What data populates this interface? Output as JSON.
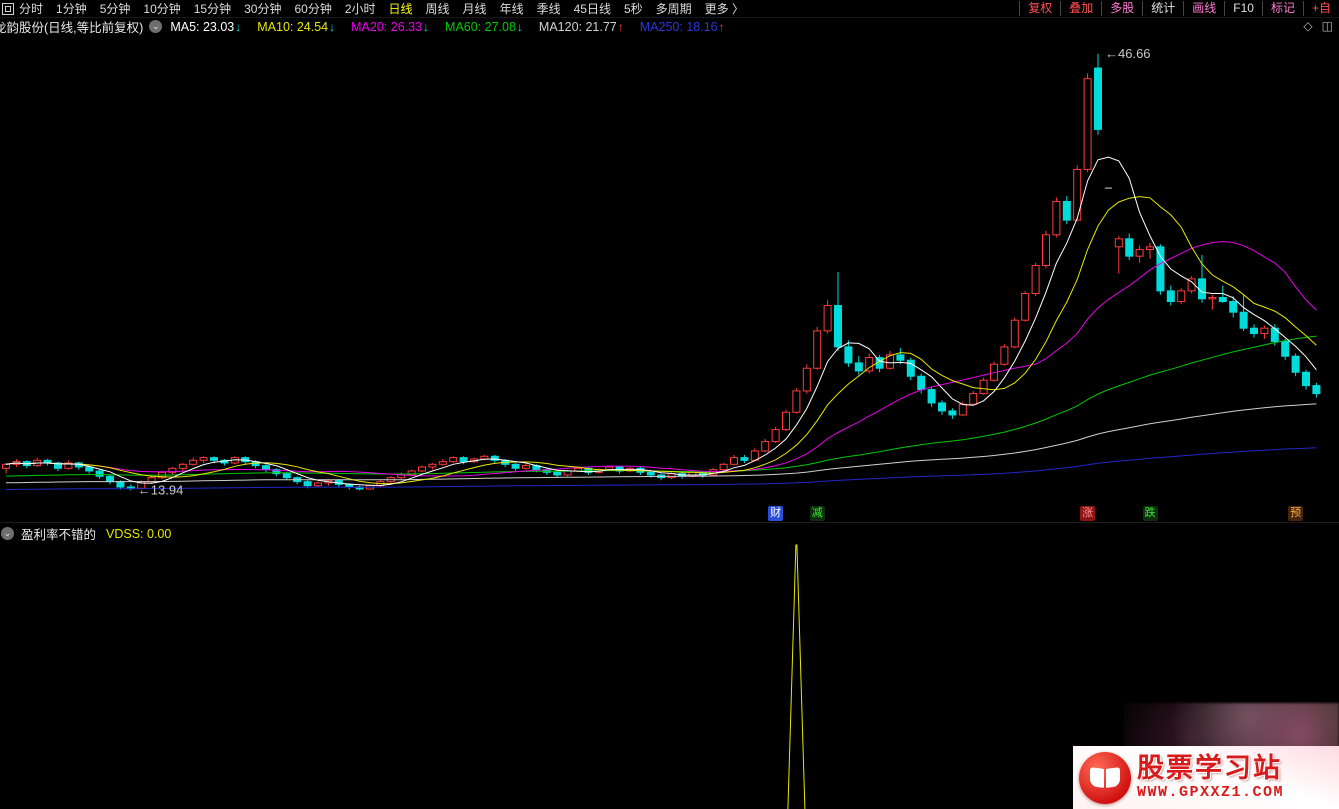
{
  "toolbar": {
    "periods": [
      {
        "label": "分时",
        "active": false
      },
      {
        "label": "1分钟",
        "active": false
      },
      {
        "label": "5分钟",
        "active": false
      },
      {
        "label": "10分钟",
        "active": false
      },
      {
        "label": "15分钟",
        "active": false
      },
      {
        "label": "30分钟",
        "active": false
      },
      {
        "label": "60分钟",
        "active": false
      },
      {
        "label": "2小时",
        "active": false
      },
      {
        "label": "日线",
        "active": true
      },
      {
        "label": "周线",
        "active": false
      },
      {
        "label": "月线",
        "active": false
      },
      {
        "label": "年线",
        "active": false
      },
      {
        "label": "季线",
        "active": false
      },
      {
        "label": "45日线",
        "active": false
      },
      {
        "label": "5秒",
        "active": false
      },
      {
        "label": "多周期",
        "active": false
      },
      {
        "label": "更多 〉",
        "active": false
      }
    ],
    "right_items": [
      {
        "label": "复权",
        "color": "#ff5050"
      },
      {
        "label": "叠加",
        "color": "#ff5050"
      },
      {
        "label": "多股",
        "color": "#ff7ad2"
      },
      {
        "label": "统计",
        "color": "#e0e0e0"
      },
      {
        "label": "画线",
        "color": "#ff7ad2"
      },
      {
        "label": "F10",
        "color": "#e0e0e0"
      },
      {
        "label": "标记",
        "color": "#ff7ad2"
      },
      {
        "label": "+自",
        "color": "#ff5050"
      }
    ]
  },
  "title_row": {
    "stock_title": "龙韵股份(日线,等比前复权)",
    "collapse_icon": "⌄",
    "ma_legend": [
      {
        "text": "MA5: 23.03",
        "color": "#ffffff",
        "arrow": "down"
      },
      {
        "text": "MA10: 24.54",
        "color": "#e8e800",
        "arrow": "down"
      },
      {
        "text": "MA20: 26.33",
        "color": "#e800e8",
        "arrow": "down"
      },
      {
        "text": "MA60: 27.08",
        "color": "#00c800",
        "arrow": "down"
      },
      {
        "text": "MA120: 21.77",
        "color": "#d0d0d0",
        "arrow": "up"
      },
      {
        "text": "MA250: 18.16",
        "color": "#2b36d8",
        "arrow": "up"
      }
    ],
    "window_icons": {
      "diamond": "◇",
      "split": "◫"
    }
  },
  "chart_data": {
    "type": "candlestick",
    "title": "龙韵股份 日线 等比前复权",
    "ylim": [
      13.0,
      48.0
    ],
    "bar_start_x": 6,
    "bar_spacing": 10.4,
    "body_width": 7,
    "colors": {
      "up": "#ff3a3a",
      "down": "#00dcdc",
      "flat": "#b0b0b0"
    },
    "candles": [
      [
        15.6,
        16.0,
        15.2,
        15.9
      ],
      [
        15.9,
        16.3,
        15.7,
        16.1
      ],
      [
        16.1,
        16.2,
        15.6,
        15.8
      ],
      [
        15.8,
        16.4,
        15.7,
        16.2
      ],
      [
        16.2,
        16.3,
        15.8,
        16.0
      ],
      [
        16.0,
        16.1,
        15.4,
        15.6
      ],
      [
        15.6,
        16.2,
        15.5,
        16.0
      ],
      [
        16.0,
        16.1,
        15.5,
        15.7
      ],
      [
        15.7,
        15.8,
        15.2,
        15.4
      ],
      [
        15.4,
        15.5,
        14.8,
        15.0
      ],
      [
        15.0,
        15.1,
        14.4,
        14.6
      ],
      [
        14.6,
        14.7,
        14.0,
        14.2
      ],
      [
        14.2,
        14.4,
        13.94,
        14.1
      ],
      [
        14.1,
        14.7,
        14.0,
        14.6
      ],
      [
        14.6,
        15.1,
        14.5,
        14.9
      ],
      [
        14.9,
        15.4,
        14.8,
        15.3
      ],
      [
        15.3,
        15.7,
        15.1,
        15.6
      ],
      [
        15.6,
        16.0,
        15.4,
        15.9
      ],
      [
        15.9,
        16.4,
        15.8,
        16.2
      ],
      [
        16.2,
        16.5,
        16.0,
        16.4
      ],
      [
        16.4,
        16.5,
        16.0,
        16.2
      ],
      [
        16.2,
        16.3,
        15.8,
        16.0
      ],
      [
        16.0,
        16.5,
        15.9,
        16.4
      ],
      [
        16.4,
        16.5,
        15.9,
        16.1
      ],
      [
        16.1,
        16.2,
        15.6,
        15.8
      ],
      [
        15.8,
        15.9,
        15.3,
        15.5
      ],
      [
        15.5,
        15.6,
        15.0,
        15.2
      ],
      [
        15.2,
        15.3,
        14.7,
        14.9
      ],
      [
        14.9,
        15.0,
        14.4,
        14.6
      ],
      [
        14.6,
        14.7,
        14.1,
        14.3
      ],
      [
        14.3,
        14.6,
        14.2,
        14.5
      ],
      [
        14.5,
        14.8,
        14.3,
        14.7
      ],
      [
        14.7,
        14.8,
        14.2,
        14.4
      ],
      [
        14.4,
        14.5,
        14.0,
        14.2
      ],
      [
        14.2,
        14.3,
        13.95,
        14.05
      ],
      [
        14.05,
        14.4,
        14.0,
        14.3
      ],
      [
        14.3,
        14.7,
        14.2,
        14.6
      ],
      [
        14.6,
        15.0,
        14.5,
        14.9
      ],
      [
        14.9,
        15.3,
        14.8,
        15.1
      ],
      [
        15.1,
        15.5,
        15.0,
        15.4
      ],
      [
        15.4,
        15.8,
        15.3,
        15.7
      ],
      [
        15.7,
        16.0,
        15.5,
        15.9
      ],
      [
        15.9,
        16.3,
        15.8,
        16.1
      ],
      [
        16.1,
        16.5,
        16.0,
        16.4
      ],
      [
        16.4,
        16.5,
        15.9,
        16.1
      ],
      [
        16.1,
        16.4,
        16.0,
        16.3
      ],
      [
        16.3,
        16.6,
        16.2,
        16.5
      ],
      [
        16.5,
        16.6,
        16.0,
        16.2
      ],
      [
        16.2,
        16.3,
        15.7,
        15.9
      ],
      [
        15.9,
        16.0,
        15.4,
        15.6
      ],
      [
        15.6,
        15.9,
        15.5,
        15.8
      ],
      [
        15.8,
        15.9,
        15.3,
        15.5
      ],
      [
        15.5,
        15.6,
        15.1,
        15.3
      ],
      [
        15.3,
        15.4,
        14.9,
        15.1
      ],
      [
        15.1,
        15.5,
        15.0,
        15.4
      ],
      [
        15.4,
        15.7,
        15.3,
        15.6
      ],
      [
        15.6,
        15.7,
        15.1,
        15.3
      ],
      [
        15.3,
        15.6,
        15.2,
        15.5
      ],
      [
        15.5,
        15.8,
        15.4,
        15.7
      ],
      [
        15.7,
        15.8,
        15.2,
        15.4
      ],
      [
        15.4,
        15.7,
        15.3,
        15.6
      ],
      [
        15.6,
        15.7,
        15.1,
        15.3
      ],
      [
        15.3,
        15.4,
        14.9,
        15.1
      ],
      [
        15.1,
        15.2,
        14.7,
        14.9
      ],
      [
        14.9,
        15.3,
        14.8,
        15.2
      ],
      [
        15.2,
        15.3,
        14.8,
        15.0
      ],
      [
        15.0,
        15.4,
        14.9,
        15.3
      ],
      [
        15.3,
        15.4,
        14.9,
        15.1
      ],
      [
        15.1,
        15.6,
        15.0,
        15.5
      ],
      [
        15.5,
        16.0,
        15.4,
        15.9
      ],
      [
        15.9,
        16.6,
        15.8,
        16.4
      ],
      [
        16.4,
        16.6,
        16.0,
        16.2
      ],
      [
        16.2,
        17.1,
        16.1,
        16.9
      ],
      [
        16.9,
        17.8,
        16.8,
        17.6
      ],
      [
        17.6,
        18.7,
        17.5,
        18.5
      ],
      [
        18.5,
        20.0,
        18.4,
        19.8
      ],
      [
        19.8,
        21.6,
        19.7,
        21.4
      ],
      [
        21.4,
        23.4,
        21.2,
        23.1
      ],
      [
        23.1,
        26.2,
        23.0,
        25.9
      ],
      [
        25.9,
        28.2,
        25.7,
        27.8
      ],
      [
        27.8,
        30.3,
        24.4,
        24.7
      ],
      [
        24.7,
        25.2,
        23.2,
        23.5
      ],
      [
        23.5,
        24.0,
        22.6,
        22.9
      ],
      [
        22.9,
        24.2,
        22.7,
        23.9
      ],
      [
        23.9,
        24.1,
        22.8,
        23.1
      ],
      [
        23.1,
        24.4,
        23.0,
        24.1
      ],
      [
        24.1,
        24.6,
        23.4,
        23.7
      ],
      [
        23.7,
        23.9,
        22.2,
        22.5
      ],
      [
        22.5,
        22.7,
        21.2,
        21.5
      ],
      [
        21.5,
        21.7,
        20.2,
        20.5
      ],
      [
        20.5,
        20.7,
        19.6,
        19.9
      ],
      [
        19.9,
        20.1,
        19.3,
        19.6
      ],
      [
        19.6,
        20.6,
        19.5,
        20.4
      ],
      [
        20.4,
        21.4,
        20.3,
        21.2
      ],
      [
        21.2,
        22.4,
        21.1,
        22.2
      ],
      [
        22.2,
        23.6,
        22.1,
        23.4
      ],
      [
        23.4,
        24.9,
        23.3,
        24.7
      ],
      [
        24.7,
        26.9,
        24.6,
        26.7
      ],
      [
        26.7,
        28.9,
        26.6,
        28.7
      ],
      [
        28.7,
        31.0,
        28.5,
        30.8
      ],
      [
        30.8,
        33.4,
        30.6,
        33.1
      ],
      [
        33.1,
        35.9,
        32.9,
        35.6
      ],
      [
        35.6,
        36.0,
        33.9,
        34.2
      ],
      [
        34.2,
        38.3,
        34.1,
        38.0
      ],
      [
        38.0,
        45.2,
        37.8,
        44.8
      ],
      [
        45.6,
        46.66,
        40.6,
        41.0
      ],
      [
        36.6,
        36.6,
        36.6,
        36.6
      ],
      [
        32.2,
        33.0,
        30.2,
        32.8
      ],
      [
        32.8,
        33.2,
        31.2,
        31.5
      ],
      [
        31.5,
        32.3,
        31.0,
        32.0
      ],
      [
        32.0,
        32.5,
        31.3,
        32.2
      ],
      [
        32.2,
        32.4,
        28.6,
        28.9
      ],
      [
        28.9,
        29.3,
        27.8,
        28.1
      ],
      [
        28.1,
        29.1,
        27.9,
        28.9
      ],
      [
        28.9,
        30.0,
        28.7,
        29.8
      ],
      [
        29.8,
        31.6,
        28.0,
        28.3
      ],
      [
        28.3,
        28.6,
        27.5,
        28.4
      ],
      [
        28.4,
        29.3,
        28.0,
        28.1
      ],
      [
        28.1,
        28.5,
        26.9,
        27.3
      ],
      [
        27.3,
        28.6,
        25.9,
        26.1
      ],
      [
        26.1,
        26.4,
        25.4,
        25.7
      ],
      [
        25.7,
        26.3,
        25.3,
        26.1
      ],
      [
        26.1,
        26.4,
        24.8,
        25.1
      ],
      [
        25.1,
        25.3,
        23.7,
        24.0
      ],
      [
        24.0,
        24.2,
        22.5,
        22.8
      ],
      [
        22.8,
        23.0,
        21.5,
        21.8
      ],
      [
        21.8,
        22.0,
        20.9,
        21.2
      ]
    ],
    "ma_lines": [
      {
        "name": "MA250",
        "window": 250,
        "color": "#2028c8",
        "seed": 14.0
      },
      {
        "name": "MA120",
        "window": 120,
        "color": "#cfcfcf",
        "seed": 14.5
      },
      {
        "name": "MA60",
        "window": 60,
        "color": "#00c800",
        "seed": 15.0
      },
      {
        "name": "MA20",
        "window": 20,
        "color": "#e800e8"
      },
      {
        "name": "MA10",
        "window": 10,
        "color": "#e8e800"
      },
      {
        "name": "MA5",
        "window": 5,
        "color": "#ffffff"
      }
    ],
    "annotations": [
      {
        "text": "←46.66",
        "bar_index": 105,
        "price": 46.66
      },
      {
        "text": "←13.94",
        "bar_index": 12,
        "price": 13.94
      }
    ],
    "event_markers": [
      {
        "label": "财",
        "bar_index": 74,
        "fg": "#ffffff",
        "bg": "#2b4fd8"
      },
      {
        "label": "减",
        "bar_index": 78,
        "fg": "#39e639",
        "bg": "#0e2f0e"
      },
      {
        "label": "涨",
        "bar_index": 104,
        "fg": "#ff9090",
        "bg": "#8f1414"
      },
      {
        "label": "跌",
        "bar_index": 110,
        "fg": "#39e639",
        "bg": "#0e2f0e"
      },
      {
        "label": "预",
        "bar_index": 124,
        "fg": "#ffae42",
        "bg": "#452410"
      }
    ],
    "sub_indicator": {
      "name": "盈利率不错的",
      "value_label": "VDSS: 0.00",
      "line_color": "#e8e800",
      "spike_bar_index": 76,
      "spike_base_half_width": 8.5
    }
  },
  "indicator_header": {
    "icon": "⌄",
    "name": "盈利率不错的",
    "value": "VDSS: 0.00"
  },
  "watermark": {
    "site_name": "股票学习站",
    "site_url": "WWW.GPXXZ1.COM",
    "accent": "#d81a1a"
  }
}
